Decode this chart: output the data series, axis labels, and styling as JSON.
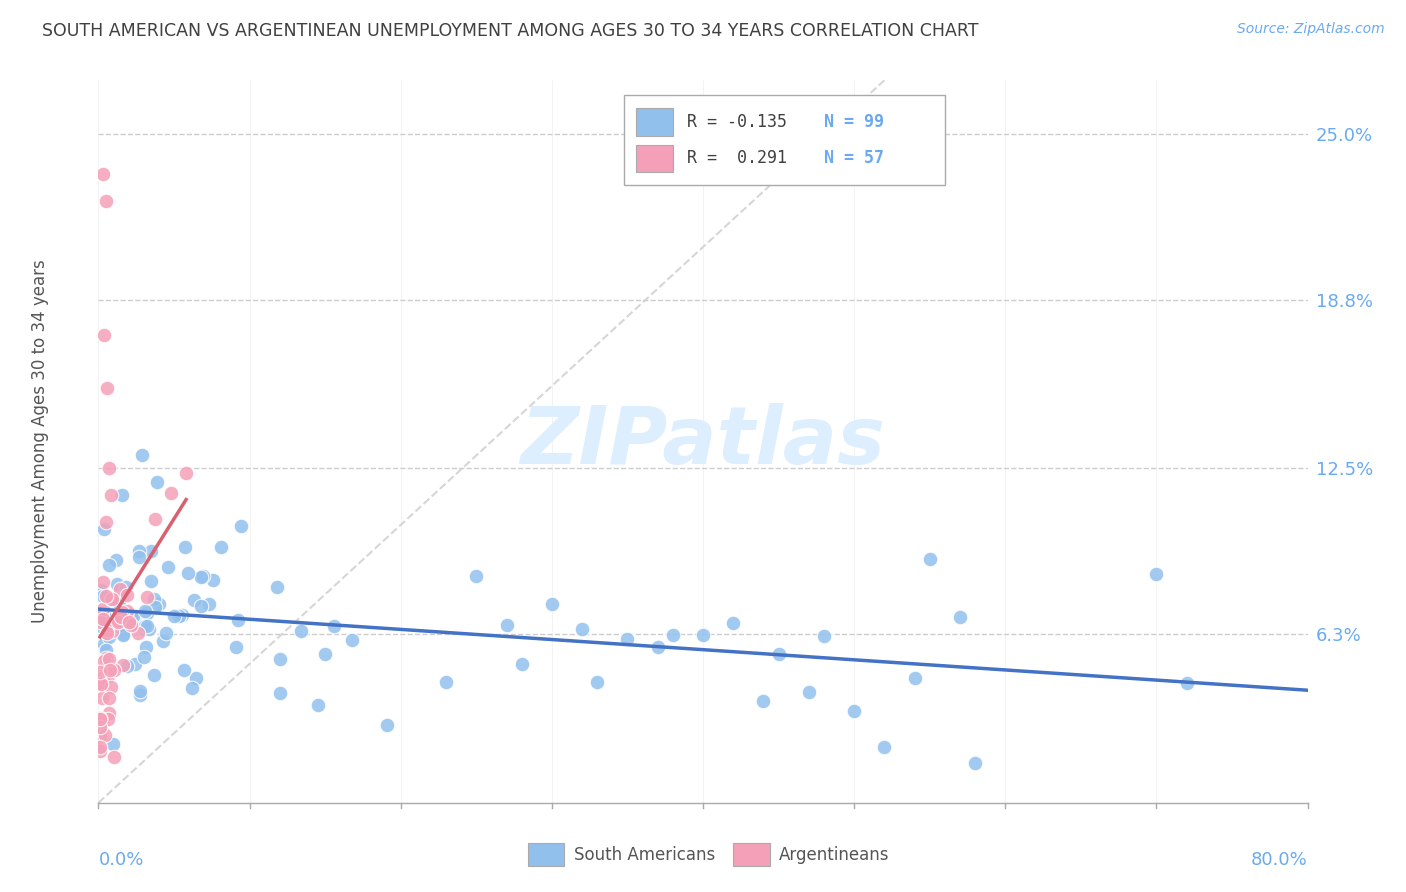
{
  "title": "SOUTH AMERICAN VS ARGENTINEAN UNEMPLOYMENT AMONG AGES 30 TO 34 YEARS CORRELATION CHART",
  "source_text": "Source: ZipAtlas.com",
  "ylabel": "Unemployment Among Ages 30 to 34 years",
  "ytick_values": [
    0.063,
    0.125,
    0.188,
    0.25
  ],
  "ytick_labels": [
    "6.3%",
    "12.5%",
    "18.8%",
    "25.0%"
  ],
  "blue_color": "#92c0ed",
  "pink_color": "#f4a0b8",
  "blue_line_color": "#4472c4",
  "pink_line_color": "#d9606e",
  "diag_color": "#cccccc",
  "title_color": "#404040",
  "axis_label_color": "#6aaaf0",
  "watermark_color": "#ddeeff",
  "grid_color": "#cccccc",
  "xmin": 0.0,
  "xmax": 0.8,
  "ymin": 0.0,
  "ymax": 0.27
}
